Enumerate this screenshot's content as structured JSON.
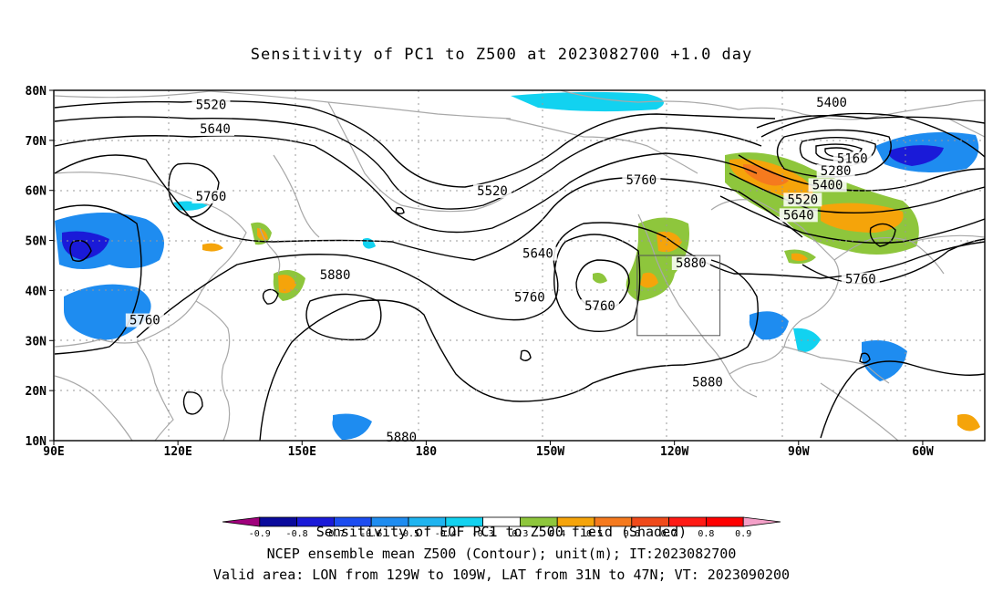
{
  "title": "Sensitivity of PC1 to Z500 at 2023082700 +1.0 day",
  "map": {
    "lat_labels": [
      "80N",
      "70N",
      "60N",
      "50N",
      "40N",
      "30N",
      "20N",
      "10N"
    ],
    "lon_labels": [
      "90E",
      "120E",
      "150E",
      "180",
      "150W",
      "120W",
      "90W",
      "60W"
    ],
    "contour_labels": [
      {
        "text": "5520",
        "lon": 128,
        "lat": 76.6
      },
      {
        "text": "5640",
        "lon": 129,
        "lat": 71.8
      },
      {
        "text": "5760",
        "lon": 128,
        "lat": 58.3
      },
      {
        "text": "5760",
        "lon": 112,
        "lat": 33.6
      },
      {
        "text": "5880",
        "lon": 158,
        "lat": 42.6
      },
      {
        "text": "5520",
        "lon": 196,
        "lat": 59.4
      },
      {
        "text": "5640",
        "lon": 207,
        "lat": 46.9
      },
      {
        "text": "5760",
        "lon": 205,
        "lat": 38.2
      },
      {
        "text": "5760",
        "lon": 232,
        "lat": 61.6
      },
      {
        "text": "5760",
        "lon": 222,
        "lat": 36.4
      },
      {
        "text": "5880",
        "lon": 244,
        "lat": 45.0
      },
      {
        "text": "5880",
        "lon": 248,
        "lat": 21.2
      },
      {
        "text": "5880",
        "lon": 174,
        "lat": 10.2
      },
      {
        "text": "5400",
        "lon": 278,
        "lat": 77.1
      },
      {
        "text": "5160",
        "lon": 283,
        "lat": 65.9
      },
      {
        "text": "5280",
        "lon": 279,
        "lat": 63.4
      },
      {
        "text": "5400",
        "lon": 277,
        "lat": 60.6
      },
      {
        "text": "5520",
        "lon": 271,
        "lat": 57.7
      },
      {
        "text": "5640",
        "lon": 270,
        "lat": 54.6
      },
      {
        "text": "5760",
        "lon": 285,
        "lat": 41.8
      }
    ],
    "valid_box": {
      "lon_min": 231,
      "lon_max": 251,
      "lat_min": 31,
      "lat_max": 47
    }
  },
  "colorbar": {
    "levels": [
      "-0.9",
      "-0.8",
      "-0.7",
      "-0.6",
      "-0.5",
      "-0.4",
      "-0.3",
      "0.3",
      "0.4",
      "0.5",
      "0.6",
      "0.7",
      "0.8",
      "0.9"
    ],
    "colors": [
      "#a0007c",
      "#0a0a9c",
      "#1a1ad8",
      "#1c4cf0",
      "#1e8cf0",
      "#1eb4f0",
      "#12d2f0",
      "#ffffff",
      "#8ec63c",
      "#f5a40a",
      "#f57a1e",
      "#f04a1a",
      "#ff1a14",
      "#ff0000",
      "#f4a0c8"
    ]
  },
  "footer": {
    "line1": "Sensitivity of EOF PC1 to Z500 field (Shaded)",
    "line2": "NCEP ensemble mean Z500 (Contour); unit(m); IT:2023082700",
    "line3": "Valid area: LON from 129W to 109W, LAT from 31N to 47N; VT: 2023090200"
  }
}
